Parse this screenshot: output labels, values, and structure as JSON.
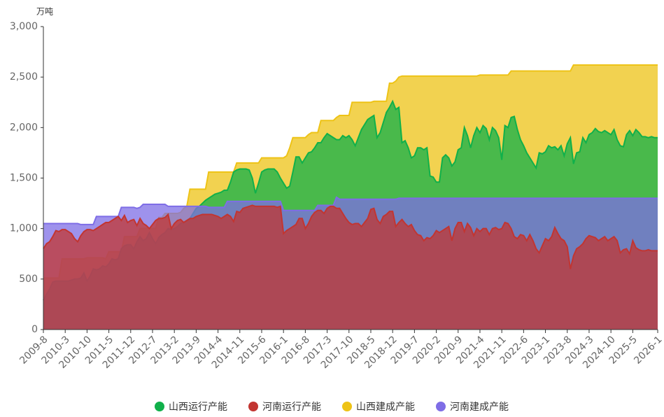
{
  "chart_data": {
    "type": "area",
    "y_unit": "万吨",
    "categories": [
      "2009-8",
      null,
      null,
      null,
      null,
      null,
      null,
      "2010-3",
      null,
      null,
      null,
      null,
      null,
      null,
      "2010-10",
      null,
      null,
      null,
      null,
      null,
      null,
      "2011-5",
      null,
      null,
      null,
      null,
      null,
      null,
      "2011-12",
      null,
      null,
      null,
      null,
      null,
      null,
      "2012-7",
      null,
      null,
      null,
      null,
      null,
      null,
      "2013-2",
      null,
      null,
      null,
      null,
      null,
      null,
      "2013-9",
      null,
      null,
      null,
      null,
      null,
      null,
      "2014-4",
      null,
      null,
      null,
      null,
      null,
      null,
      "2014-11",
      null,
      null,
      null,
      null,
      null,
      null,
      "2015-6",
      null,
      null,
      null,
      null,
      null,
      null,
      "2016-1",
      null,
      null,
      null,
      null,
      null,
      null,
      "2016-8",
      null,
      null,
      null,
      null,
      null,
      null,
      "2017-3",
      null,
      null,
      null,
      null,
      null,
      null,
      "2017-10",
      null,
      null,
      null,
      null,
      null,
      null,
      "2018-5",
      null,
      null,
      null,
      null,
      null,
      null,
      "2018-12",
      null,
      null,
      null,
      null,
      null,
      null,
      "2019-7",
      null,
      null,
      null,
      null,
      null,
      null,
      "2020-2",
      null,
      null,
      null,
      null,
      null,
      null,
      "2020-9",
      null,
      null,
      null,
      null,
      null,
      null,
      "2021-4",
      null,
      null,
      null,
      null,
      null,
      null,
      "2021-11",
      null,
      null,
      null,
      null,
      null,
      null,
      "2022-6",
      null,
      null,
      null,
      null,
      null,
      null,
      "2023-1",
      null,
      null,
      null,
      null,
      null,
      null,
      "2023-8",
      null,
      null,
      null,
      null,
      null,
      null,
      "2024-3",
      null,
      null,
      null,
      null,
      null,
      null,
      "2024-10",
      null,
      null,
      null,
      null,
      null,
      null,
      "2025-5",
      null,
      null,
      null,
      null,
      null,
      null,
      null,
      "2026-1"
    ],
    "series": [
      {
        "name": "山西建成产能",
        "color": "#eec316",
        "values": [
          510,
          510,
          510,
          510,
          510,
          510,
          700,
          700,
          700,
          700,
          700,
          700,
          700,
          700,
          710,
          710,
          710,
          710,
          710,
          710,
          700,
          770,
          770,
          770,
          770,
          770,
          920,
          920,
          920,
          920,
          920,
          1000,
          1000,
          1000,
          1000,
          1000,
          1000,
          1110,
          1110,
          1150,
          1150,
          1150,
          1150,
          1150,
          1160,
          1200,
          1220,
          1390,
          1390,
          1390,
          1390,
          1390,
          1390,
          1560,
          1560,
          1560,
          1560,
          1560,
          1560,
          1560,
          1560,
          1560,
          1650,
          1650,
          1650,
          1650,
          1650,
          1650,
          1650,
          1650,
          1700,
          1700,
          1700,
          1700,
          1700,
          1700,
          1700,
          1700,
          1720,
          1800,
          1900,
          1900,
          1900,
          1900,
          1900,
          1930,
          1950,
          1950,
          1950,
          2070,
          2070,
          2070,
          2070,
          2070,
          2100,
          2120,
          2120,
          2120,
          2120,
          2250,
          2250,
          2250,
          2250,
          2250,
          2250,
          2250,
          2260,
          2260,
          2260,
          2260,
          2260,
          2440,
          2440,
          2460,
          2500,
          2510,
          2510,
          2510,
          2510,
          2510,
          2510,
          2510,
          2510,
          2510,
          2510,
          2510,
          2510,
          2510,
          2510,
          2510,
          2510,
          2510,
          2510,
          2510,
          2510,
          2510,
          2510,
          2510,
          2510,
          2510,
          2520,
          2520,
          2520,
          2520,
          2520,
          2520,
          2520,
          2520,
          2520,
          2520,
          2560,
          2560,
          2560,
          2560,
          2560,
          2560,
          2560,
          2560,
          2560,
          2560,
          2560,
          2560,
          2560,
          2560,
          2560,
          2560,
          2560,
          2560,
          2560,
          2560,
          2620,
          2620,
          2620,
          2620,
          2620,
          2620,
          2620,
          2620,
          2620,
          2620,
          2620,
          2620,
          2620,
          2620,
          2620,
          2620,
          2620,
          2620,
          2620,
          2620,
          2620,
          2620,
          2620,
          2620,
          2620,
          2620,
          2620,
          2620
        ]
      },
      {
        "name": "山西运行产能",
        "color": "#10b04a",
        "values": [
          290,
          350,
          400,
          470,
          480,
          480,
          480,
          480,
          480,
          490,
          500,
          500,
          510,
          560,
          480,
          530,
          600,
          590,
          600,
          630,
          620,
          650,
          700,
          690,
          700,
          800,
          830,
          840,
          840,
          800,
          870,
          920,
          880,
          900,
          960,
          900,
          850,
          910,
          940,
          960,
          1000,
          990,
          1000,
          1020,
          1050,
          1060,
          1080,
          1100,
          1150,
          1200,
          1220,
          1250,
          1280,
          1300,
          1320,
          1340,
          1350,
          1360,
          1380,
          1380,
          1460,
          1560,
          1580,
          1590,
          1590,
          1590,
          1580,
          1500,
          1350,
          1450,
          1560,
          1580,
          1590,
          1590,
          1590,
          1560,
          1500,
          1450,
          1400,
          1420,
          1560,
          1710,
          1710,
          1650,
          1700,
          1750,
          1760,
          1800,
          1850,
          1850,
          1900,
          1940,
          1920,
          1900,
          1880,
          1880,
          1920,
          1900,
          1920,
          1880,
          1820,
          1900,
          1980,
          2030,
          2080,
          2100,
          2120,
          1900,
          1950,
          2050,
          2150,
          2200,
          2260,
          2180,
          2200,
          1850,
          1870,
          1800,
          1700,
          1720,
          1800,
          1800,
          1780,
          1800,
          1520,
          1510,
          1460,
          1460,
          1700,
          1730,
          1700,
          1620,
          1660,
          1780,
          1800,
          2000,
          1920,
          1800,
          1920,
          2000,
          1950,
          2020,
          1990,
          1880,
          2000,
          1970,
          1900,
          1680,
          2020,
          2000,
          2100,
          2110,
          1980,
          1880,
          1820,
          1750,
          1700,
          1650,
          1600,
          1750,
          1740,
          1760,
          1820,
          1800,
          1810,
          1780,
          1820,
          1720,
          1840,
          1900,
          1640,
          1750,
          1760,
          1900,
          1850,
          1930,
          1950,
          1990,
          1960,
          1950,
          1970,
          1950,
          1930,
          1980,
          1880,
          1820,
          1810,
          1930,
          1970,
          1920,
          1980,
          1950,
          1910,
          1910,
          1900,
          1910,
          1900,
          1900
        ]
      },
      {
        "name": "河南建成产能",
        "color": "#7e6de6",
        "values": [
          1050,
          1050,
          1050,
          1050,
          1050,
          1050,
          1050,
          1050,
          1050,
          1050,
          1050,
          1050,
          1040,
          1040,
          1040,
          1040,
          1040,
          1120,
          1120,
          1120,
          1120,
          1120,
          1120,
          1120,
          1120,
          1210,
          1210,
          1210,
          1210,
          1210,
          1200,
          1210,
          1240,
          1240,
          1240,
          1240,
          1240,
          1240,
          1240,
          1240,
          1220,
          1220,
          1220,
          1220,
          1220,
          1220,
          1220,
          1220,
          1220,
          1220,
          1220,
          1220,
          1220,
          1210,
          1210,
          1210,
          1210,
          1210,
          1210,
          1270,
          1270,
          1270,
          1270,
          1270,
          1270,
          1270,
          1270,
          1270,
          1270,
          1270,
          1270,
          1270,
          1270,
          1270,
          1270,
          1270,
          1270,
          1180,
          1180,
          1180,
          1180,
          1180,
          1180,
          1180,
          1180,
          1180,
          1180,
          1180,
          1230,
          1230,
          1230,
          1230,
          1230,
          1230,
          1310,
          1290,
          1290,
          1290,
          1290,
          1290,
          1290,
          1290,
          1290,
          1290,
          1290,
          1290,
          1290,
          1290,
          1290,
          1290,
          1290,
          1290,
          1290,
          1290,
          1300,
          1300,
          1300,
          1300,
          1300,
          1300,
          1300,
          1300,
          1300,
          1300,
          1300,
          1300,
          1300,
          1300,
          1300,
          1300,
          1300,
          1300,
          1300,
          1300,
          1300,
          1300,
          1300,
          1300,
          1300,
          1300,
          1300,
          1300,
          1300,
          1300,
          1300,
          1300,
          1300,
          1300,
          1300,
          1300,
          1300,
          1300,
          1300,
          1300,
          1300,
          1300,
          1300,
          1300,
          1300,
          1300,
          1300,
          1300,
          1300,
          1300,
          1300,
          1300,
          1300,
          1300,
          1300,
          1300,
          1300,
          1300,
          1300,
          1300,
          1300,
          1300,
          1300,
          1300,
          1300,
          1300,
          1300,
          1300,
          1300,
          1300,
          1300,
          1300,
          1300,
          1300,
          1300,
          1300,
          1300,
          1300,
          1300,
          1300,
          1300,
          1300,
          1300,
          1300
        ]
      },
      {
        "name": "河南运行产能",
        "color": "#c23531",
        "values": [
          800,
          850,
          870,
          920,
          980,
          970,
          990,
          990,
          970,
          950,
          900,
          870,
          930,
          970,
          990,
          990,
          980,
          1000,
          1020,
          1040,
          1060,
          1060,
          1080,
          1100,
          1120,
          1080,
          1130,
          1060,
          1080,
          1090,
          1030,
          1100,
          1050,
          1030,
          1000,
          1040,
          1080,
          1100,
          1100,
          1110,
          1140,
          1000,
          1050,
          1080,
          1090,
          1060,
          1080,
          1100,
          1100,
          1120,
          1130,
          1140,
          1140,
          1140,
          1140,
          1130,
          1120,
          1100,
          1120,
          1140,
          1120,
          1070,
          1170,
          1160,
          1200,
          1210,
          1220,
          1230,
          1220,
          1220,
          1220,
          1220,
          1220,
          1220,
          1220,
          1210,
          1220,
          950,
          980,
          1000,
          1020,
          1040,
          1100,
          1100,
          1000,
          1050,
          1120,
          1160,
          1180,
          1180,
          1150,
          1200,
          1220,
          1220,
          1200,
          1200,
          1150,
          1100,
          1060,
          1040,
          1050,
          1050,
          1020,
          1060,
          1100,
          1190,
          1200,
          1090,
          1050,
          1120,
          1140,
          1170,
          1170,
          1020,
          1060,
          1090,
          1050,
          1020,
          1040,
          980,
          940,
          930,
          880,
          910,
          900,
          930,
          980,
          960,
          980,
          1000,
          1020,
          880,
          1000,
          1060,
          1060,
          970,
          1050,
          1010,
          930,
          1000,
          970,
          1000,
          1000,
          940,
          1000,
          1010,
          990,
          1000,
          1060,
          1050,
          1000,
          920,
          900,
          940,
          930,
          880,
          940,
          880,
          800,
          760,
          830,
          900,
          880,
          920,
          1010,
          950,
          900,
          880,
          820,
          600,
          730,
          800,
          820,
          850,
          900,
          930,
          920,
          910,
          880,
          900,
          920,
          880,
          900,
          920,
          880,
          760,
          790,
          800,
          750,
          880,
          810,
          790,
          780,
          780,
          790,
          780,
          780,
          780
        ]
      }
    ],
    "legend_order": [
      1,
      3,
      0,
      2
    ],
    "ylim": [
      0,
      3000
    ],
    "yticks": [
      0,
      500,
      {
        "value": 1000,
        "label": "1,000"
      },
      {
        "value": 1500,
        "label": "1,500"
      },
      {
        "value": 2000,
        "label": "2,000"
      },
      {
        "value": 2500,
        "label": "2,500"
      },
      {
        "value": 3000,
        "label": "3,000"
      }
    ],
    "grid": false,
    "legend_position": "bottom"
  }
}
